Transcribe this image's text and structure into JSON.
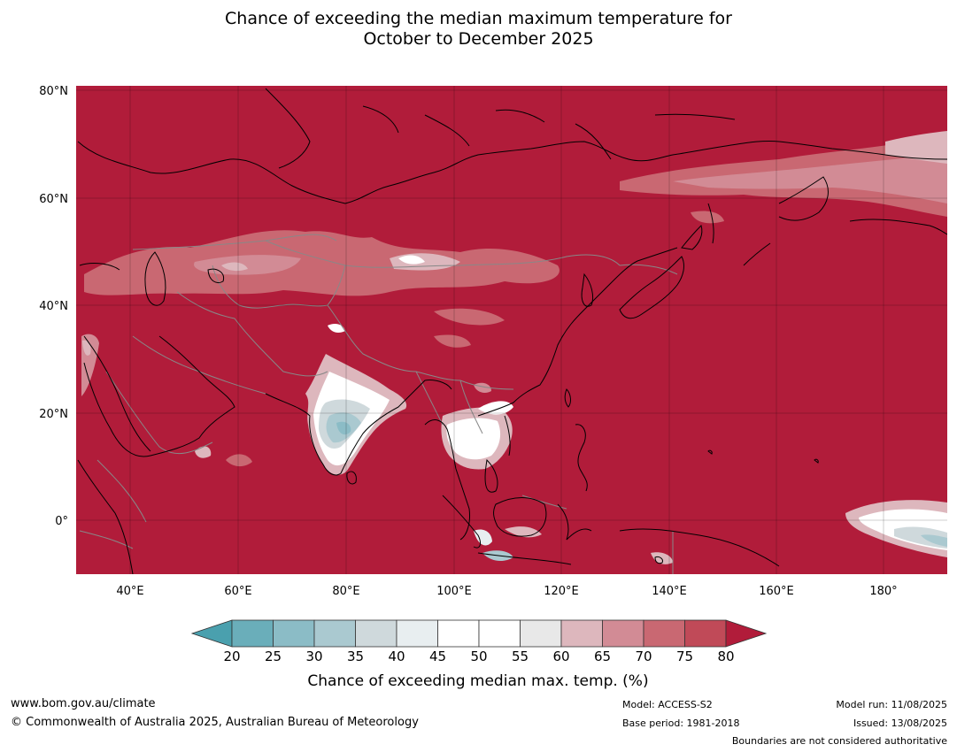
{
  "title": {
    "line1": "Chance of exceeding the median maximum temperature for",
    "line2": "October to December 2025"
  },
  "map": {
    "lat_labels": [
      "80°N",
      "60°N",
      "40°N",
      "20°N",
      "0°"
    ],
    "lon_labels": [
      "40°E",
      "60°E",
      "80°E",
      "100°E",
      "120°E",
      "140°E",
      "160°E",
      "180°"
    ],
    "background_color": "#b11c3a",
    "coastline_color": "#000000",
    "border_color": "#888888"
  },
  "colorbar": {
    "tick_labels": [
      "20",
      "25",
      "30",
      "35",
      "40",
      "45",
      "50",
      "55",
      "60",
      "65",
      "70",
      "75",
      "80"
    ],
    "colors": [
      "#4aa0ae",
      "#6aaeba",
      "#8bbcc6",
      "#aac9d0",
      "#cfd9dc",
      "#e8eef0",
      "#ffffff",
      "#ffffff",
      "#e8e8e8",
      "#ddb7bd",
      "#d28b95",
      "#c96872",
      "#c04a58",
      "#b11c3a"
    ],
    "label": "Chance of exceeding median max. temp. (%)"
  },
  "footer": {
    "website": "www.bom.gov.au/climate",
    "copyright": "© Commonwealth of Australia 2025, Australian Bureau of Meteorology",
    "model": "Model: ACCESS-S2",
    "base_period": "Base period: 1981-2018",
    "model_run": "Model run: 11/08/2025",
    "issued": "Issued: 13/08/2025",
    "disclaimer": "Boundaries are not considered authoritative"
  }
}
